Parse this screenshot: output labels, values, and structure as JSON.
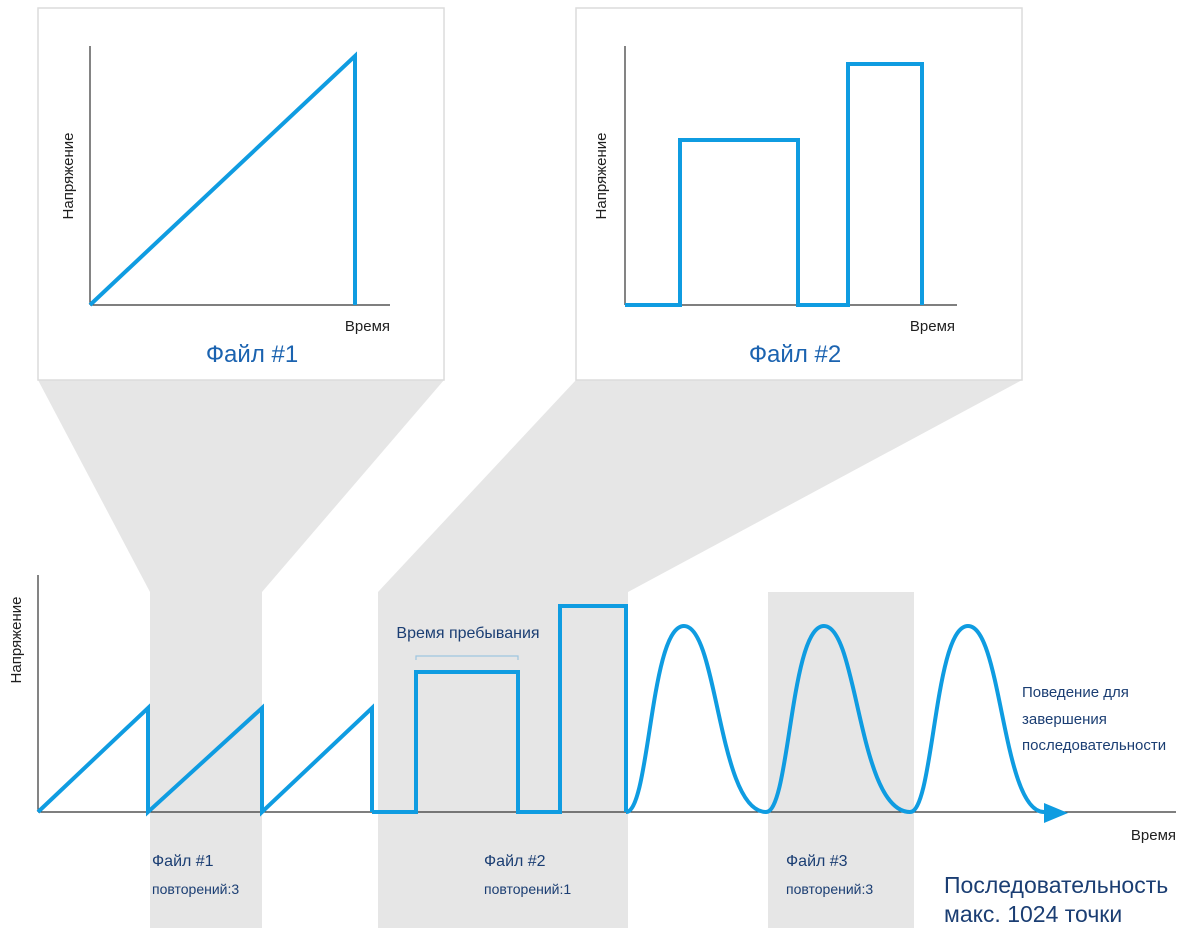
{
  "colors": {
    "waveform": "#0f9ce1",
    "axis": "#333333",
    "callout_fill": "#e6e6e6",
    "panel_border": "#dcdcdc",
    "label_blue": "#1b3e73",
    "label_accent": "#1b63b0",
    "dwell_bracket": "#9ec6e0"
  },
  "panel_file1": {
    "ylabel": "Напряжение",
    "xlabel": "Время",
    "caption": "Файл #1"
  },
  "panel_file2": {
    "ylabel": "Напряжение",
    "xlabel": "Время",
    "caption": "Файл #2"
  },
  "sequence_plot": {
    "ylabel": "Напряжение",
    "xlabel": "Время",
    "dwell_time_label": "Время пребывания",
    "end_behavior_lines": [
      "Поведение для",
      "завершения",
      "последовательности"
    ]
  },
  "segments": [
    {
      "file_label": "Файл #1",
      "repeat_label": "повторений:3"
    },
    {
      "file_label": "Файл #2",
      "repeat_label": "повторений:1"
    },
    {
      "file_label": "Файл #3",
      "repeat_label": "повторений:3"
    }
  ],
  "sequence_note": {
    "line1": "Последовательность",
    "line2": "макс. 1024 точки"
  }
}
